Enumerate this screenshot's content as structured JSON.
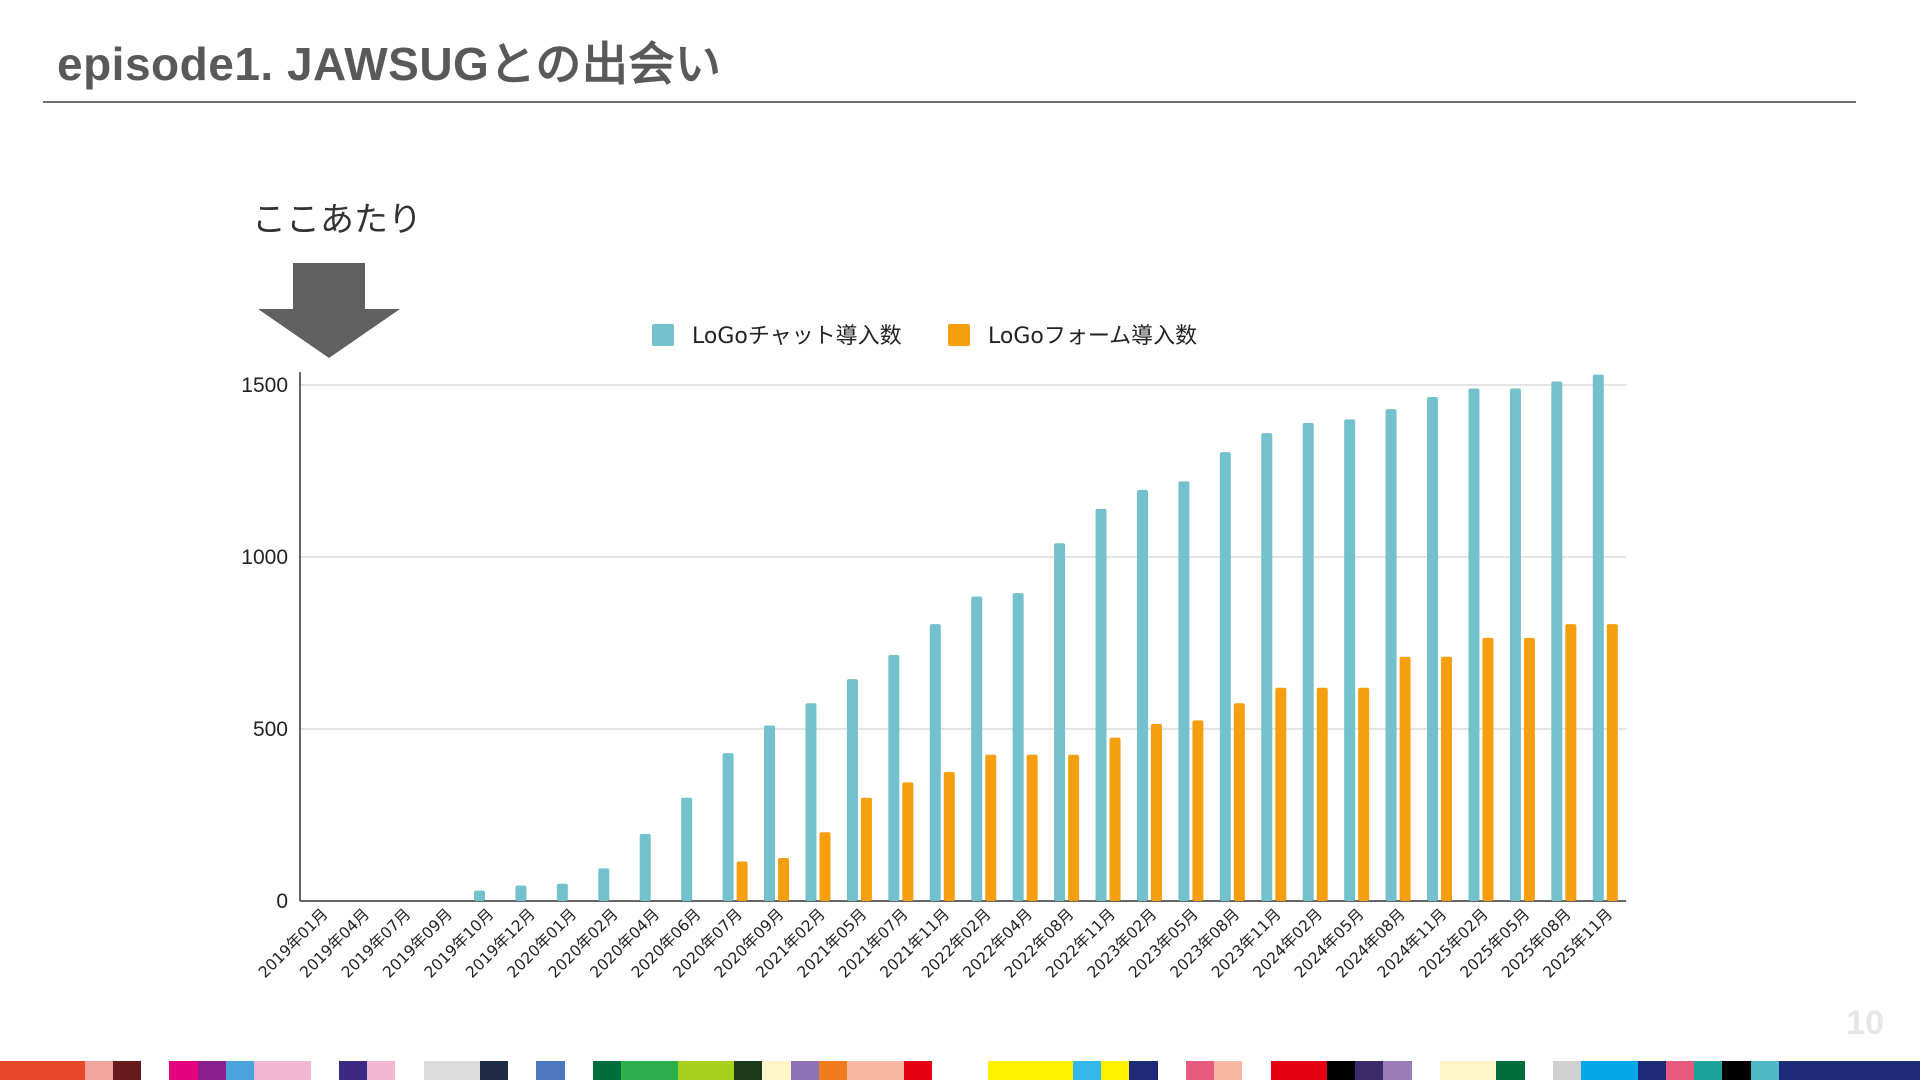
{
  "slide": {
    "title": "episode1. JAWSUGとの出会い",
    "annotation": "ここあたり",
    "page_number": "10",
    "arrow_color": "#606060"
  },
  "chart_data": {
    "type": "bar",
    "categories": [
      "2019年01月",
      "2019年04月",
      "2019年07月",
      "2019年09月",
      "2019年10月",
      "2019年12月",
      "2020年01月",
      "2020年02月",
      "2020年04月",
      "2020年06月",
      "2020年07月",
      "2020年09月",
      "2021年02月",
      "2021年05月",
      "2021年07月",
      "2021年11月",
      "2022年02月",
      "2022年04月",
      "2022年08月",
      "2022年11月",
      "2023年02月",
      "2023年05月",
      "2023年08月",
      "2023年11月",
      "2024年02月",
      "2024年05月",
      "2024年08月",
      "2024年11月",
      "2025年02月",
      "2025年05月",
      "2025年08月",
      "2025年11月"
    ],
    "series": [
      {
        "name": "LoGoチャット導入数",
        "color": "#74c1ce",
        "values": [
          0,
          0,
          0,
          0,
          30,
          45,
          50,
          95,
          195,
          300,
          430,
          510,
          575,
          645,
          715,
          805,
          885,
          895,
          1040,
          1140,
          1195,
          1220,
          1305,
          1360,
          1390,
          1400,
          1430,
          1465,
          1490,
          1490,
          1510,
          1530
        ]
      },
      {
        "name": "LoGoフォーム導入数",
        "color": "#f59f0f",
        "values": [
          0,
          0,
          0,
          0,
          0,
          0,
          0,
          0,
          0,
          0,
          115,
          125,
          200,
          300,
          345,
          375,
          425,
          425,
          425,
          475,
          515,
          525,
          575,
          620,
          620,
          620,
          710,
          710,
          765,
          765,
          805,
          805
        ]
      }
    ],
    "yticks": [
      "0",
      "500",
      "1000",
      "1500"
    ],
    "ylim": [
      0,
      1560
    ],
    "grid": true,
    "legend_position": "top-center"
  },
  "strip_colors": [
    "#e8472b",
    "#e8472b",
    "#e8472b",
    "#f0a39a",
    "#6a1a1a",
    "#ffffff",
    "#e5007e",
    "#8b1e8f",
    "#4aa3df",
    "#f3b7d3",
    "#f3b7d3",
    "#ffffff",
    "#3b2a83",
    "#f3b7d3",
    "#ffffff",
    "#dcdcdc",
    "#dcdcdc",
    "#1f2a44",
    "#ffffff",
    "#4b77be",
    "#ffffff",
    "#006e3a",
    "#2bb04a",
    "#2bb04a",
    "#a8cf1b",
    "#a8cf1b",
    "#1a3a1a",
    "#fff6c8",
    "#8e72b8",
    "#ef7d1e",
    "#f7b7a0",
    "#f7b7a0",
    "#e50012",
    "#ffffff",
    "#ffffff",
    "#fff100",
    "#fff100",
    "#fff100",
    "#34b7e9",
    "#fff100",
    "#1d2a7a",
    "#ffffff",
    "#e85a7d",
    "#f7b7a0",
    "#ffffff",
    "#e50012",
    "#e50012",
    "#000000",
    "#3d2a6b",
    "#9b7bb8",
    "#ffffff",
    "#fff6c8",
    "#fff6c8",
    "#006e3a",
    "#ffffff",
    "#d0d0d0",
    "#00a8e8",
    "#00a8e8",
    "#1d2a7a",
    "#e85a7d",
    "#1aa39a",
    "#000000",
    "#4fb8c6",
    "#1d2a7a",
    "#1d2a7a",
    "#1d2a7a",
    "#1d2a7a",
    "#1d2a7a"
  ]
}
